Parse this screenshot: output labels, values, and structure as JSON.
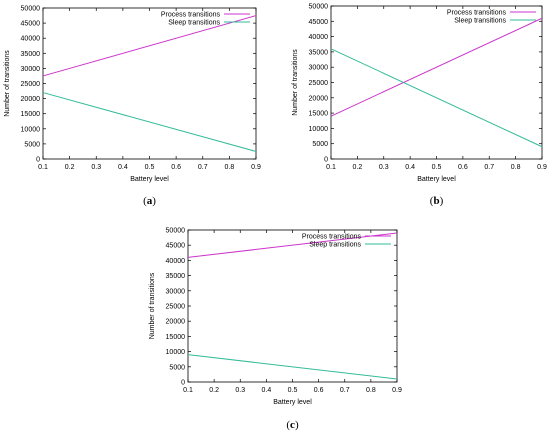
{
  "chart_data": [
    {
      "type": "line",
      "panel_label": "(a)",
      "xlabel": "Battery level",
      "ylabel": "Number of transitions",
      "xlim": [
        0.1,
        0.9
      ],
      "ylim": [
        0,
        50000
      ],
      "xticks": [
        0.1,
        0.2,
        0.3,
        0.4,
        0.5,
        0.6,
        0.7,
        0.8,
        0.9
      ],
      "yticks": [
        0,
        5000,
        10000,
        15000,
        20000,
        25000,
        30000,
        35000,
        40000,
        45000,
        50000
      ],
      "legend_position": "top-right",
      "grid": false,
      "series": [
        {
          "name": "Process transitions",
          "color": "#cc33cc",
          "x": [
            0.1,
            0.9
          ],
          "y": [
            27500,
            47500
          ]
        },
        {
          "name": "Sleep transitions",
          "color": "#33bb99",
          "x": [
            0.1,
            0.9
          ],
          "y": [
            22000,
            2500
          ]
        }
      ]
    },
    {
      "type": "line",
      "panel_label": "(b)",
      "xlabel": "Battery level",
      "ylabel": "Number of transitions",
      "xlim": [
        0.1,
        0.9
      ],
      "ylim": [
        0,
        50000
      ],
      "xticks": [
        0.1,
        0.2,
        0.3,
        0.4,
        0.5,
        0.6,
        0.7,
        0.8,
        0.9
      ],
      "yticks": [
        0,
        5000,
        10000,
        15000,
        20000,
        25000,
        30000,
        35000,
        40000,
        45000,
        50000
      ],
      "legend_position": "top-right",
      "grid": false,
      "series": [
        {
          "name": "Process transitions",
          "color": "#cc33cc",
          "x": [
            0.1,
            0.9
          ],
          "y": [
            14000,
            46000
          ]
        },
        {
          "name": "Sleep transitions",
          "color": "#33bb99",
          "x": [
            0.1,
            0.9
          ],
          "y": [
            36000,
            4000
          ]
        }
      ]
    },
    {
      "type": "line",
      "panel_label": "(c)",
      "xlabel": "Battery level",
      "ylabel": "Number of transitions",
      "xlim": [
        0.1,
        0.9
      ],
      "ylim": [
        0,
        50000
      ],
      "xticks": [
        0.1,
        0.2,
        0.3,
        0.4,
        0.5,
        0.6,
        0.7,
        0.8,
        0.9
      ],
      "yticks": [
        0,
        5000,
        10000,
        15000,
        20000,
        25000,
        30000,
        35000,
        40000,
        45000,
        50000
      ],
      "legend_position": "top-right",
      "grid": false,
      "series": [
        {
          "name": "Process transitions",
          "color": "#cc33cc",
          "x": [
            0.1,
            0.9
          ],
          "y": [
            41000,
            49000
          ]
        },
        {
          "name": "Sleep transitions",
          "color": "#33bb99",
          "x": [
            0.1,
            0.9
          ],
          "y": [
            9000,
            1000
          ]
        }
      ]
    }
  ]
}
